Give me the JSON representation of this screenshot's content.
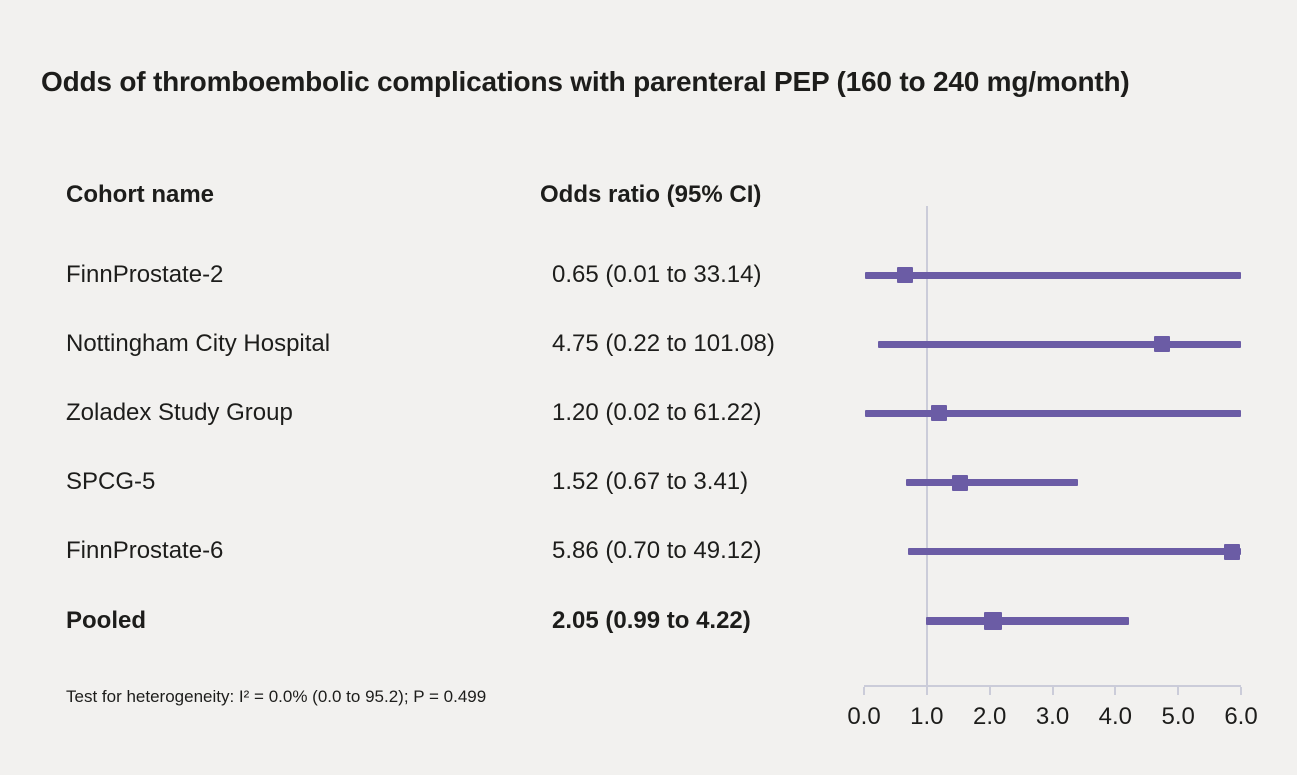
{
  "title": "Odds of thromboembolic complications with parenteral PEP (160 to 240 mg/month)",
  "columns": {
    "cohort": "Cohort name",
    "odds_ratio": "Odds ratio (95% CI)"
  },
  "footnote": "Test for heterogeneity: I² = 0.0% (0.0 to 95.2); P = 0.499",
  "chart_data": {
    "type": "forest",
    "title": "Odds of thromboembolic complications with parenteral PEP (160 to 240 mg/month)",
    "xlabel": "Odds ratio",
    "xlim": [
      0.0,
      6.0
    ],
    "x_ticks": [
      0.0,
      1.0,
      2.0,
      3.0,
      4.0,
      5.0,
      6.0
    ],
    "x_tick_labels": [
      "0.0",
      "1.0",
      "2.0",
      "3.0",
      "4.0",
      "5.0",
      "6.0"
    ],
    "reference_line": 1.0,
    "grid": false,
    "rows": [
      {
        "label": "FinnProstate-2",
        "or_text": "0.65 (0.01 to 33.14)",
        "or": 0.65,
        "ci_low": 0.01,
        "ci_high": 33.14,
        "pooled": false
      },
      {
        "label": "Nottingham City Hospital",
        "or_text": "4.75 (0.22 to 101.08)",
        "or": 4.75,
        "ci_low": 0.22,
        "ci_high": 101.08,
        "pooled": false
      },
      {
        "label": "Zoladex Study Group",
        "or_text": "1.20 (0.02 to 61.22)",
        "or": 1.2,
        "ci_low": 0.02,
        "ci_high": 61.22,
        "pooled": false
      },
      {
        "label": "SPCG-5",
        "or_text": "1.52 (0.67 to 3.41)",
        "or": 1.52,
        "ci_low": 0.67,
        "ci_high": 3.41,
        "pooled": false
      },
      {
        "label": "FinnProstate-6",
        "or_text": "5.86 (0.70 to 49.12)",
        "or": 5.86,
        "ci_low": 0.7,
        "ci_high": 49.12,
        "pooled": false
      },
      {
        "label": "Pooled",
        "or_text": "2.05 (0.99 to 4.22)",
        "or": 2.05,
        "ci_low": 0.99,
        "ci_high": 4.22,
        "pooled": true
      }
    ],
    "colors": {
      "marker": "#6b5ca5",
      "line": "#6b5ca5",
      "axis": "#cbccd9",
      "background": "#f2f1ef",
      "text": "#1d1d1b"
    }
  }
}
